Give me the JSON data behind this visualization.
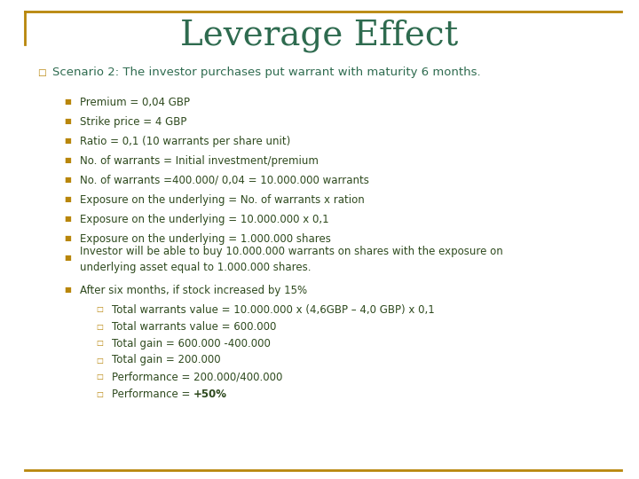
{
  "title": "Leverage Effect",
  "title_color": "#2e6b4f",
  "title_fontsize": 28,
  "background_color": "#ffffff",
  "border_color": "#b8860b",
  "scenario_text": "Scenario 2: The investor purchases put warrant with maturity 6 months.",
  "scenario_color": "#2e6b4f",
  "scenario_fontsize": 9.5,
  "bullet_color": "#b8860b",
  "text_color": "#2e4a1e",
  "bullet_fontsize": 8.5,
  "sub_bullet_fontsize": 8.5,
  "bullets": [
    "Premium = 0,04 GBP",
    "Strike price = 4 GBP",
    "Ratio = 0,1 (10 warrants per share unit)",
    "No. of warrants = Initial investment/premium",
    "No. of warrants =400.000/ 0,04 = 10.000.000 warrants",
    "Exposure on the underlying = No. of warrants x ration",
    "Exposure on the underlying = 10.000.000 x 0,1",
    "Exposure on the underlying = 1.000.000 shares",
    "Investor will be able to buy 10.000.000 warrants on shares with the exposure on\nunderlying asset equal to 1.000.000 shares.",
    "After six months, if stock increased by 15%"
  ],
  "sub_bullets": [
    "Total warrants value = 10.000.000 x (4,6GBP – 4,0 GBP) x 0,1",
    "Total warrants value = 600.000",
    "Total gain = 600.000 -400.000",
    "Total gain = 200.000",
    "Performance = 200.000/400.000",
    "Performance = +50%"
  ]
}
